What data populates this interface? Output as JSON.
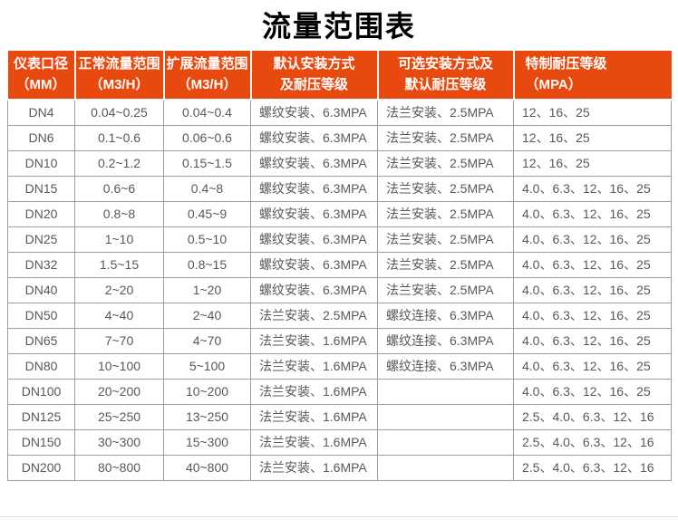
{
  "title": "流量范围表",
  "chart_data": {
    "type": "table",
    "title": "流量范围表",
    "columns": [
      {
        "line1": "仪表口径",
        "line2": "（MM）"
      },
      {
        "line1": "正常流量范围",
        "line2": "（M3/H）"
      },
      {
        "line1": "扩展流量范围",
        "line2": "（M3/H）"
      },
      {
        "line1": "默认安装方式",
        "line2": "及耐压等级"
      },
      {
        "line1": "可选安装方式及",
        "line2": "默认耐压等级"
      },
      {
        "line1": "特制耐压等级",
        "line2": "（MPA）"
      }
    ],
    "rows": [
      [
        "DN4",
        "0.04~0.25",
        "0.04~0.4",
        "螺纹安装、6.3MPA",
        "法兰安装、2.5MPA",
        "12、16、25"
      ],
      [
        "DN6",
        "0.1~0.6",
        "0.06~0.6",
        "螺纹安装、6.3MPA",
        "法兰安装、2.5MPA",
        "12、16、25"
      ],
      [
        "DN10",
        "0.2~1.2",
        "0.15~1.5",
        "螺纹安装、6.3MPA",
        "法兰安装、2.5MPA",
        "12、16、25"
      ],
      [
        "DN15",
        "0.6~6",
        "0.4~8",
        "螺纹安装、6.3MPA",
        "法兰安装、2.5MPA",
        "4.0、6.3、12、16、25"
      ],
      [
        "DN20",
        "0.8~8",
        "0.45~9",
        "螺纹安装、6.3MPA",
        "法兰安装、2.5MPA",
        "4.0、6.3、12、16、25"
      ],
      [
        "DN25",
        "1~10",
        "0.5~10",
        "螺纹安装、6.3MPA",
        "法兰安装、2.5MPA",
        "4.0、6.3、12、16、25"
      ],
      [
        "DN32",
        "1.5~15",
        "0.8~15",
        "螺纹安装、6.3MPA",
        "法兰安装、2.5MPA",
        "4.0、6.3、12、16、25"
      ],
      [
        "DN40",
        "2~20",
        "1~20",
        "螺纹安装、6.3MPA",
        "法兰安装、2.5MPA",
        "4.0、6.3、12、16、25"
      ],
      [
        "DN50",
        "4~40",
        "2~40",
        "法兰安装、2.5MPA",
        "螺纹连接、6.3MPA",
        "4.0、6.3、12、16、25"
      ],
      [
        "DN65",
        "7~70",
        "4~70",
        "法兰安装、1.6MPA",
        "螺纹连接、6.3MPA",
        "4.0、6.3、12、16、25"
      ],
      [
        "DN80",
        "10~100",
        "5~100",
        "法兰安装、1.6MPA",
        "螺纹连接、6.3MPA",
        "4.0、6.3、12、16、25"
      ],
      [
        "DN100",
        "20~200",
        "10~200",
        "法兰安装、1.6MPA",
        "",
        "4.0、6.3、12、16、25"
      ],
      [
        "DN125",
        "25~250",
        "13~250",
        "法兰安装、1.6MPA",
        "",
        "2.5、4.0、6.3、12、16"
      ],
      [
        "DN150",
        "30~300",
        "15~300",
        "法兰安装、1.6MPA",
        "",
        "2.5、4.0、6.3、12、16"
      ],
      [
        "DN200",
        "80~800",
        "40~800",
        "法兰安装、1.6MPA",
        "",
        "2.5、4.0、6.3、12、16"
      ]
    ]
  },
  "colors": {
    "header_bg": "#e8490e",
    "header_text": "#ffffff",
    "body_text": "#595959",
    "grid_line": "#9e9e9e",
    "title_color": "#000000",
    "bottom_divider": "#e2e2e2"
  }
}
